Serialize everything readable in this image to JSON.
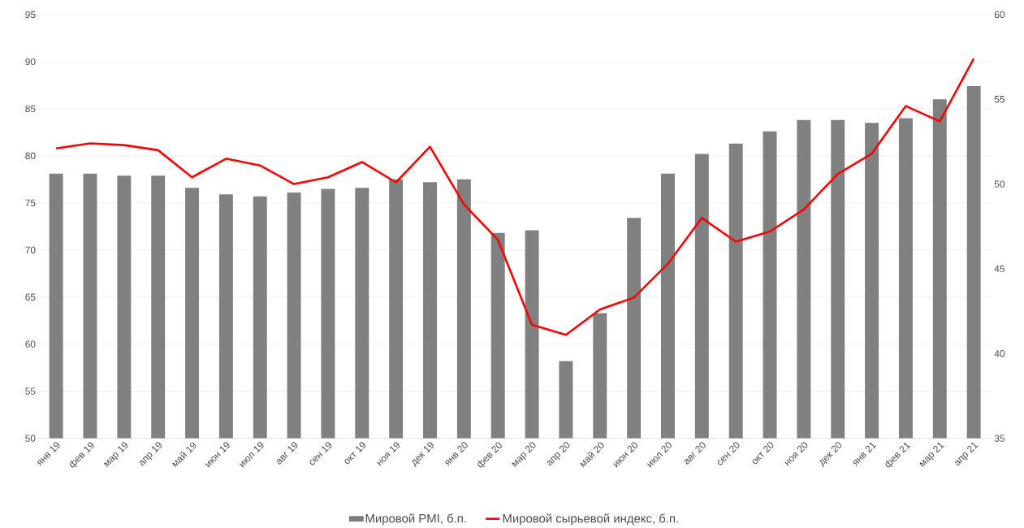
{
  "chart_data": {
    "type": "bar",
    "categories": [
      "янв 19",
      "фев 19",
      "мар 19",
      "апр 19",
      "май 19",
      "июн 19",
      "июл 19",
      "авг 19",
      "сен 19",
      "окт 19",
      "ноя 19",
      "дек 19",
      "янв 20",
      "фев 20",
      "мар 20",
      "апр 20",
      "май 20",
      "июн 20",
      "июл 20",
      "авг 20",
      "сен 20",
      "окт 20",
      "ноя 20",
      "дек 20",
      "янв 21",
      "фев 21",
      "мар 21",
      "апр 21"
    ],
    "series": [
      {
        "name": "Мировой PMI, б.п.",
        "color": "#808080",
        "values": [
          78.1,
          78.1,
          77.9,
          77.9,
          76.6,
          75.9,
          75.7,
          76.1,
          76.5,
          76.6,
          77.5,
          77.2,
          77.5,
          71.8,
          72.1,
          58.2,
          63.3,
          73.4,
          78.1,
          80.2,
          81.3,
          82.6,
          83.8,
          83.8,
          83.5,
          84.0,
          86.0,
          87.4
        ]
      },
      {
        "name": "Мировой сырьевой индекс, б.п.",
        "type": "line",
        "axis": "y2",
        "color": "#ff0000",
        "values": [
          52.1,
          52.4,
          52.3,
          52.0,
          50.4,
          51.5,
          51.1,
          50.0,
          50.4,
          51.3,
          50.1,
          52.2,
          48.8,
          46.7,
          41.7,
          41.1,
          42.6,
          43.3,
          45.3,
          48.0,
          46.6,
          47.2,
          48.5,
          50.6,
          51.8,
          54.6,
          53.7,
          57.4
        ]
      }
    ],
    "ylim": [
      50,
      95
    ],
    "yticks": [
      50,
      55,
      60,
      65,
      70,
      75,
      80,
      85,
      90,
      95
    ],
    "y2lim": [
      35,
      60
    ],
    "y2ticks": [
      35,
      40,
      45,
      50,
      55,
      60
    ],
    "grid": "y",
    "legend": "bottom",
    "marker": "none",
    "line_style": "solid"
  }
}
